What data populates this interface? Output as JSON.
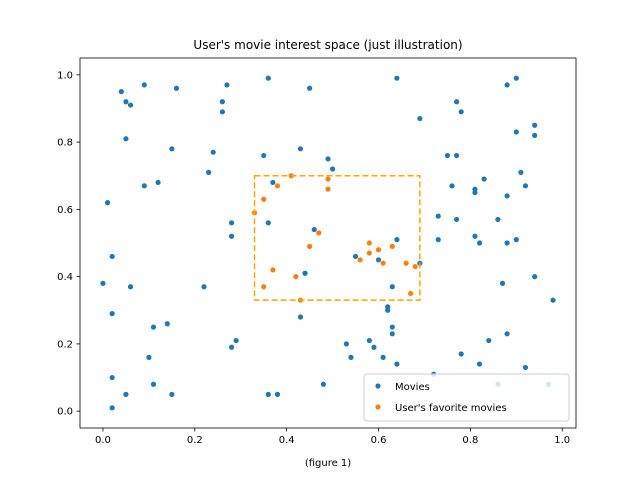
{
  "chart_data": {
    "type": "scatter",
    "title": "User's movie interest space (just illustration)",
    "xlabel": "(figure 1)",
    "ylabel": "",
    "xlim": [
      -0.05,
      1.03
    ],
    "ylim": [
      -0.05,
      1.05
    ],
    "xticks": [
      "0.0",
      "0.2",
      "0.4",
      "0.6",
      "0.8",
      "1.0"
    ],
    "yticks": [
      "0.0",
      "0.2",
      "0.4",
      "0.6",
      "0.8",
      "1.0"
    ],
    "grid": false,
    "legend_position": "lower-right",
    "highlight_box": {
      "x": [
        0.33,
        0.69
      ],
      "y": [
        0.33,
        0.7
      ],
      "color": "#ffa500",
      "style": "dashed"
    },
    "series": [
      {
        "name": "Movies",
        "color": "#1f77b4",
        "points": [
          [
            0.0,
            0.38
          ],
          [
            0.01,
            0.62
          ],
          [
            0.02,
            0.29
          ],
          [
            0.02,
            0.46
          ],
          [
            0.02,
            0.1
          ],
          [
            0.02,
            0.01
          ],
          [
            0.04,
            0.95
          ],
          [
            0.05,
            0.92
          ],
          [
            0.05,
            0.81
          ],
          [
            0.06,
            0.91
          ],
          [
            0.06,
            0.37
          ],
          [
            0.05,
            0.05
          ],
          [
            0.09,
            0.97
          ],
          [
            0.09,
            0.67
          ],
          [
            0.1,
            0.16
          ],
          [
            0.11,
            0.25
          ],
          [
            0.11,
            0.08
          ],
          [
            0.12,
            0.68
          ],
          [
            0.14,
            0.26
          ],
          [
            0.15,
            0.78
          ],
          [
            0.15,
            0.05
          ],
          [
            0.16,
            0.96
          ],
          [
            0.22,
            0.37
          ],
          [
            0.23,
            0.71
          ],
          [
            0.24,
            0.77
          ],
          [
            0.26,
            0.92
          ],
          [
            0.26,
            0.89
          ],
          [
            0.27,
            0.97
          ],
          [
            0.28,
            0.56
          ],
          [
            0.28,
            0.52
          ],
          [
            0.28,
            0.19
          ],
          [
            0.29,
            0.21
          ],
          [
            0.35,
            0.76
          ],
          [
            0.36,
            0.56
          ],
          [
            0.36,
            0.99
          ],
          [
            0.36,
            0.05
          ],
          [
            0.37,
            0.68
          ],
          [
            0.38,
            0.05
          ],
          [
            0.43,
            0.78
          ],
          [
            0.43,
            0.28
          ],
          [
            0.44,
            0.41
          ],
          [
            0.45,
            0.96
          ],
          [
            0.46,
            0.54
          ],
          [
            0.48,
            0.08
          ],
          [
            0.49,
            0.75
          ],
          [
            0.5,
            0.72
          ],
          [
            0.53,
            0.2
          ],
          [
            0.54,
            0.16
          ],
          [
            0.55,
            0.46
          ],
          [
            0.58,
            0.21
          ],
          [
            0.59,
            0.19
          ],
          [
            0.6,
            0.45
          ],
          [
            0.61,
            0.16
          ],
          [
            0.62,
            0.3
          ],
          [
            0.62,
            0.31
          ],
          [
            0.63,
            0.25
          ],
          [
            0.63,
            0.37
          ],
          [
            0.63,
            0.23
          ],
          [
            0.64,
            0.51
          ],
          [
            0.64,
            0.14
          ],
          [
            0.64,
            0.99
          ],
          [
            0.69,
            0.44
          ],
          [
            0.69,
            0.87
          ],
          [
            0.72,
            0.11
          ],
          [
            0.73,
            0.51
          ],
          [
            0.73,
            0.58
          ],
          [
            0.75,
            0.76
          ],
          [
            0.76,
            0.67
          ],
          [
            0.77,
            0.92
          ],
          [
            0.77,
            0.76
          ],
          [
            0.77,
            0.57
          ],
          [
            0.78,
            0.17
          ],
          [
            0.78,
            0.89
          ],
          [
            0.81,
            0.65
          ],
          [
            0.81,
            0.66
          ],
          [
            0.81,
            0.52
          ],
          [
            0.82,
            0.5
          ],
          [
            0.82,
            0.14
          ],
          [
            0.83,
            0.69
          ],
          [
            0.84,
            0.21
          ],
          [
            0.86,
            0.57
          ],
          [
            0.86,
            0.08
          ],
          [
            0.87,
            0.38
          ],
          [
            0.88,
            0.97
          ],
          [
            0.88,
            0.64
          ],
          [
            0.88,
            0.5
          ],
          [
            0.88,
            0.23
          ],
          [
            0.9,
            0.99
          ],
          [
            0.9,
            0.83
          ],
          [
            0.9,
            0.51
          ],
          [
            0.91,
            0.71
          ],
          [
            0.92,
            0.67
          ],
          [
            0.92,
            0.13
          ],
          [
            0.94,
            0.85
          ],
          [
            0.94,
            0.82
          ],
          [
            0.94,
            0.4
          ],
          [
            0.97,
            0.08
          ],
          [
            0.98,
            0.33
          ]
        ]
      },
      {
        "name": "User's favorite movies",
        "color": "#ff7f0e",
        "points": [
          [
            0.33,
            0.59
          ],
          [
            0.35,
            0.63
          ],
          [
            0.35,
            0.37
          ],
          [
            0.37,
            0.42
          ],
          [
            0.38,
            0.67
          ],
          [
            0.41,
            0.7
          ],
          [
            0.42,
            0.4
          ],
          [
            0.43,
            0.33
          ],
          [
            0.45,
            0.49
          ],
          [
            0.47,
            0.53
          ],
          [
            0.49,
            0.66
          ],
          [
            0.49,
            0.69
          ],
          [
            0.56,
            0.45
          ],
          [
            0.58,
            0.47
          ],
          [
            0.58,
            0.5
          ],
          [
            0.6,
            0.48
          ],
          [
            0.61,
            0.44
          ],
          [
            0.63,
            0.49
          ],
          [
            0.66,
            0.44
          ],
          [
            0.67,
            0.35
          ],
          [
            0.68,
            0.43
          ]
        ]
      }
    ]
  }
}
